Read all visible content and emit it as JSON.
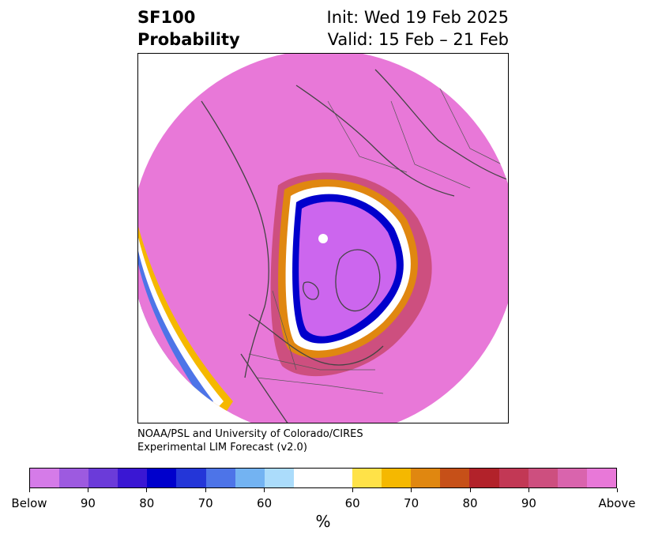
{
  "title": {
    "left_line1": "SF100",
    "left_line2": "Probability",
    "right_line1": "Init: Wed 19 Feb 2025",
    "right_line2": "Valid: 15 Feb – 21 Feb"
  },
  "credit": {
    "line1": "NOAA/PSL and University of Colorado/CIRES",
    "line2": "Experimental LIM Forecast (v2.0)"
  },
  "colorbar": {
    "unit": "%",
    "colors": [
      "#d57be8",
      "#9d5ae0",
      "#6b3bd9",
      "#3a17d3",
      "#0000cc",
      "#2436d8",
      "#4d74e8",
      "#73b3f2",
      "#abdcfb",
      "#ffffff",
      "#ffe248",
      "#f5b800",
      "#e08710",
      "#c65018",
      "#b2222a",
      "#c23855",
      "#cd4f7f",
      "#d964ad",
      "#e878d8"
    ],
    "tick_labels": [
      "Below",
      "90",
      "80",
      "70",
      "60",
      "60",
      "70",
      "80",
      "90",
      "Above"
    ]
  },
  "map": {
    "colors": {
      "above": "#e878d8",
      "below": "#cc66ee",
      "land_lines": "#444444"
    }
  }
}
